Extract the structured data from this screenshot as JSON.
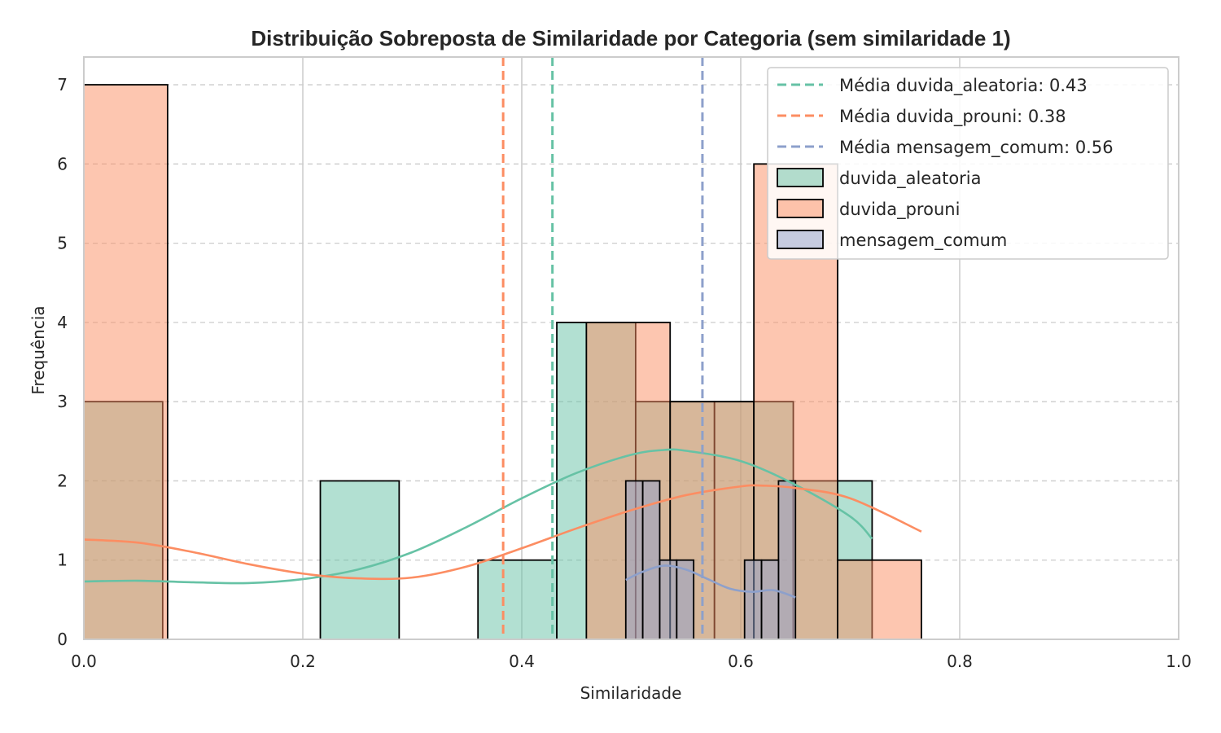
{
  "chart_data": {
    "type": "histogram",
    "title": "Distribuição Sobreposta de Similaridade por Categoria (sem similaridade 1)",
    "xlabel": "Similaridade",
    "ylabel": "Frequência",
    "xlim": [
      0.0,
      1.0
    ],
    "ylim": [
      0,
      7.35
    ],
    "x_ticks": [
      "0.0",
      "0.2",
      "0.4",
      "0.6",
      "0.8",
      "1.0"
    ],
    "y_ticks": [
      "0",
      "1",
      "2",
      "3",
      "4",
      "5",
      "6",
      "7"
    ],
    "grid": true,
    "legend_position": "top-right",
    "series": [
      {
        "name": "duvida_aleatoria",
        "color": "#66c2a5",
        "bins": [
          {
            "x0": 0.0,
            "x1": 0.072,
            "count": 3
          },
          {
            "x0": 0.216,
            "x1": 0.288,
            "count": 2
          },
          {
            "x0": 0.36,
            "x1": 0.432,
            "count": 1
          },
          {
            "x0": 0.432,
            "x1": 0.504,
            "count": 4
          },
          {
            "x0": 0.504,
            "x1": 0.576,
            "count": 3
          },
          {
            "x0": 0.576,
            "x1": 0.648,
            "count": 3
          },
          {
            "x0": 0.648,
            "x1": 0.72,
            "count": 2
          }
        ],
        "mean_label": "Média duvida_aleatoria: 0.43",
        "mean": 0.428,
        "kde": [
          [
            0.0,
            0.73
          ],
          [
            0.05,
            0.74
          ],
          [
            0.1,
            0.72
          ],
          [
            0.15,
            0.71
          ],
          [
            0.2,
            0.76
          ],
          [
            0.25,
            0.88
          ],
          [
            0.3,
            1.1
          ],
          [
            0.35,
            1.42
          ],
          [
            0.4,
            1.78
          ],
          [
            0.45,
            2.1
          ],
          [
            0.5,
            2.33
          ],
          [
            0.53,
            2.39
          ],
          [
            0.55,
            2.38
          ],
          [
            0.6,
            2.25
          ],
          [
            0.65,
            1.95
          ],
          [
            0.7,
            1.55
          ],
          [
            0.72,
            1.27
          ]
        ]
      },
      {
        "name": "duvida_prouni",
        "color": "#fc8d62",
        "bins": [
          {
            "x0": 0.0,
            "x1": 0.0765,
            "count": 7
          },
          {
            "x0": 0.459,
            "x1": 0.5355,
            "count": 4
          },
          {
            "x0": 0.5355,
            "x1": 0.612,
            "count": 3
          },
          {
            "x0": 0.612,
            "x1": 0.6885,
            "count": 6
          },
          {
            "x0": 0.6885,
            "x1": 0.765,
            "count": 1
          }
        ],
        "mean_label": "Média duvida_prouni: 0.38",
        "mean": 0.383,
        "kde": [
          [
            0.0,
            1.26
          ],
          [
            0.05,
            1.22
          ],
          [
            0.1,
            1.1
          ],
          [
            0.15,
            0.95
          ],
          [
            0.2,
            0.83
          ],
          [
            0.25,
            0.77
          ],
          [
            0.3,
            0.78
          ],
          [
            0.35,
            0.92
          ],
          [
            0.4,
            1.15
          ],
          [
            0.45,
            1.4
          ],
          [
            0.5,
            1.63
          ],
          [
            0.55,
            1.82
          ],
          [
            0.6,
            1.93
          ],
          [
            0.62,
            1.94
          ],
          [
            0.65,
            1.91
          ],
          [
            0.7,
            1.78
          ],
          [
            0.765,
            1.36
          ]
        ]
      },
      {
        "name": "mensagem_comum",
        "color": "#8da0cb",
        "bins": [
          {
            "x0": 0.495,
            "x1": 0.5105,
            "count": 2
          },
          {
            "x0": 0.5105,
            "x1": 0.526,
            "count": 2
          },
          {
            "x0": 0.526,
            "x1": 0.5415,
            "count": 1
          },
          {
            "x0": 0.5415,
            "x1": 0.557,
            "count": 1
          },
          {
            "x0": 0.6035,
            "x1": 0.619,
            "count": 1
          },
          {
            "x0": 0.619,
            "x1": 0.6345,
            "count": 1
          },
          {
            "x0": 0.6345,
            "x1": 0.65,
            "count": 2
          }
        ],
        "mean_label": "Média mensagem_comum: 0.56",
        "mean": 0.565,
        "kde": [
          [
            0.495,
            0.75
          ],
          [
            0.51,
            0.85
          ],
          [
            0.53,
            0.93
          ],
          [
            0.55,
            0.88
          ],
          [
            0.57,
            0.76
          ],
          [
            0.59,
            0.64
          ],
          [
            0.61,
            0.6
          ],
          [
            0.63,
            0.62
          ],
          [
            0.65,
            0.53
          ]
        ]
      }
    ]
  }
}
